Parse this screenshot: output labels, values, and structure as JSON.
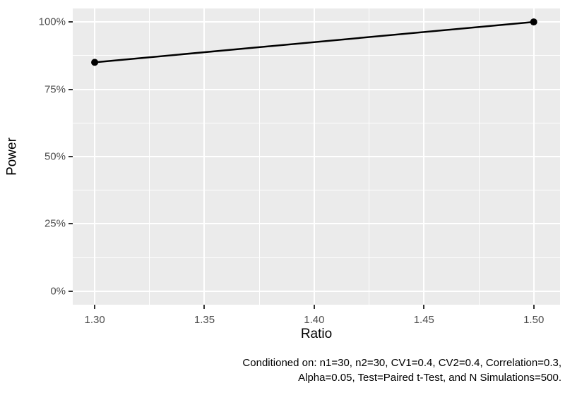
{
  "chart_data": {
    "type": "line",
    "title": "",
    "xlabel": "Ratio",
    "ylabel": "Power",
    "x": [
      1.3,
      1.5
    ],
    "y": [
      85,
      100
    ],
    "y_unit": "percent",
    "series": [
      {
        "name": "Power",
        "x": [
          1.3,
          1.5
        ],
        "y_percent": [
          85,
          100
        ]
      }
    ],
    "xlim": [
      1.29,
      1.512
    ],
    "ylim": [
      -5,
      105
    ],
    "x_ticks": [
      {
        "value": 1.3,
        "label": "1.30"
      },
      {
        "value": 1.35,
        "label": "1.35"
      },
      {
        "value": 1.4,
        "label": "1.40"
      },
      {
        "value": 1.45,
        "label": "1.45"
      },
      {
        "value": 1.5,
        "label": "1.50"
      }
    ],
    "y_ticks": [
      {
        "value": 0,
        "label": "0%"
      },
      {
        "value": 25,
        "label": "25%"
      },
      {
        "value": 50,
        "label": "50%"
      },
      {
        "value": 75,
        "label": "75%"
      },
      {
        "value": 100,
        "label": "100%"
      }
    ],
    "x_minor": [
      1.325,
      1.375,
      1.425,
      1.475
    ],
    "y_minor": [
      12.5,
      37.5,
      62.5,
      87.5
    ],
    "grid": true,
    "legend": "none",
    "caption_lines": [
      "Conditioned on: n1=30, n2=30, CV1=0.4, CV2=0.4, Correlation=0.3,",
      "Alpha=0.05, Test=Paired t-Test, and N Simulations=500."
    ],
    "colors": {
      "panel_background": "#EBEBEB",
      "gridline": "#FFFFFF",
      "tick_label": "#4D4D4D",
      "tick_mark": "#333333",
      "axis_title": "#000000",
      "caption": "#000000",
      "line": "#000000",
      "point": "#000000"
    }
  }
}
